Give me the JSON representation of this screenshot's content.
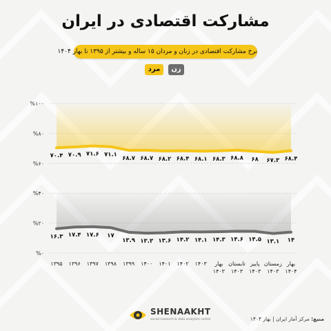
{
  "title": "مشارکت اقتصادی در ایران",
  "subtitle": "نرخ مشارکت اقتصادی در زنان و مردان ۱۵ ساله و بیشتر از ۱۳۹۵ تا بهار ۱۴۰۴",
  "legend": {
    "men": "مرد",
    "women": "زن"
  },
  "colors": {
    "men": "#f5c518",
    "women": "#6d6d6d",
    "accent": "#f5c518"
  },
  "brand": {
    "name": "SHENAAKHT",
    "tagline": "social research & data analytics center",
    "icon": "eye-logo-icon"
  },
  "source": {
    "label": "منبع:",
    "text": "مرکز آمار ایران | بهار ۱۴۰۴"
  },
  "chart_data": {
    "type": "line",
    "x": [
      "1395",
      "1396",
      "1397",
      "1398",
      "1399",
      "1400",
      "1401",
      "1402",
      "1403",
      "Spring 1403",
      "Summer 1403",
      "Autumn 1403",
      "Winter 1403",
      "Spring 1404"
    ],
    "x_tick_labels": [
      [
        "۱۳۹۵"
      ],
      [
        "۱۳۹۶"
      ],
      [
        "۱۳۹۷"
      ],
      [
        "۱۳۹۸"
      ],
      [
        "۱۳۹۹"
      ],
      [
        "۱۴۰۰"
      ],
      [
        "۱۴۰۱"
      ],
      [
        "۱۴۰۲"
      ],
      [
        "۱۴۰۳"
      ],
      [
        "بهار",
        "۱۴۰۳"
      ],
      [
        "تابستان",
        "۱۴۰۳"
      ],
      [
        "پاییز",
        "۱۴۰۳"
      ],
      [
        "زمستان",
        "۱۴۰۳"
      ],
      [
        "بهار",
        "۱۴۰۴"
      ]
    ],
    "series": [
      {
        "name": "مرد",
        "values": [
          70.4,
          70.9,
          71.6,
          71.1,
          68.7,
          68.7,
          68.2,
          68.4,
          68.1,
          68.3,
          68.8,
          68.0,
          67.3,
          68.4
        ],
        "labels": [
          "۷۰.۴",
          "۷۰.۹",
          "۷۱.۶",
          "۷۱.۱",
          "۶۸.۷",
          "۶۸.۷",
          "۶۸.۲",
          "۶۸.۴",
          "۶۸.۱",
          "۶۸.۳",
          "۶۸.۸",
          "۶۸",
          "۶۷.۳",
          "۶۸.۴"
        ]
      },
      {
        "name": "زن",
        "values": [
          16.3,
          17.4,
          17.6,
          17.0,
          13.9,
          13.3,
          13.6,
          14.2,
          14.1,
          14.3,
          14.6,
          14.5,
          13.1,
          14.0
        ],
        "labels": [
          "۱۶.۳",
          "۱۷.۴",
          "۱۷.۶",
          "۱۷",
          "۱۳.۹",
          "۱۳.۳",
          "۱۳.۶",
          "۱۴.۲",
          "۱۴.۱",
          "۱۴.۳",
          "۱۴.۶",
          "۱۴.۵",
          "۱۳.۱",
          "۱۴"
        ]
      }
    ],
    "ylim": [
      0,
      100
    ],
    "y_ticks": [
      0,
      20,
      40,
      60,
      80,
      100
    ],
    "y_tick_labels": [
      "%۰",
      "%۲۰",
      "%۴۰",
      "%۶۰",
      "%۸۰",
      "%۱۰۰"
    ],
    "grid": true,
    "legend_position": "top-left"
  }
}
